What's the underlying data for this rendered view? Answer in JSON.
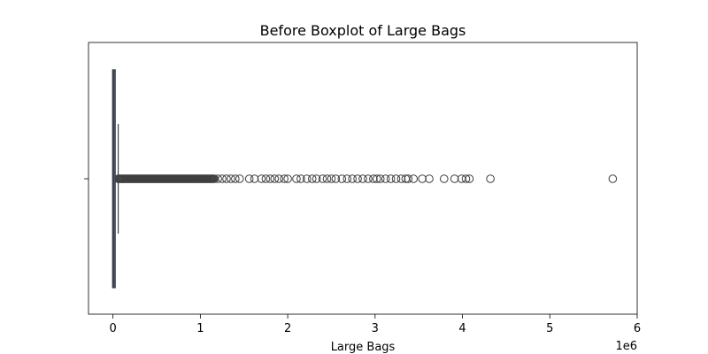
{
  "chart_data": {
    "type": "boxplot",
    "orientation": "horizontal",
    "title": "Before Boxplot of Large Bags",
    "xlabel": "Large Bags",
    "ylabel": "",
    "offset_label": "1e6",
    "xlim": [
      -280000,
      6000000
    ],
    "xticks": [
      0,
      1000000,
      2000000,
      3000000,
      4000000,
      5000000,
      6000000
    ],
    "xtick_labels": [
      "0",
      "1",
      "2",
      "3",
      "4",
      "5",
      "6"
    ],
    "grid": false,
    "box": {
      "q1": 0,
      "median": 6000,
      "q3": 22000,
      "whisker_low": 0,
      "whisker_high": 60000
    },
    "box_color": "#4c72b0",
    "line_color": "#3f3f3f",
    "outlier_dense_ranges": [
      [
        60000,
        1150000
      ]
    ],
    "outliers": [
      1160000,
      1200000,
      1250000,
      1300000,
      1350000,
      1400000,
      1450000,
      1560000,
      1620000,
      1700000,
      1750000,
      1800000,
      1850000,
      1900000,
      1960000,
      2000000,
      2100000,
      2150000,
      2220000,
      2280000,
      2330000,
      2400000,
      2450000,
      2500000,
      2550000,
      2620000,
      2680000,
      2740000,
      2800000,
      2860000,
      2920000,
      2980000,
      3020000,
      3060000,
      3120000,
      3180000,
      3240000,
      3300000,
      3350000,
      3380000,
      3440000,
      3540000,
      3620000,
      3790000,
      3910000,
      3990000,
      4040000,
      4080000,
      4320000,
      5720000
    ]
  }
}
